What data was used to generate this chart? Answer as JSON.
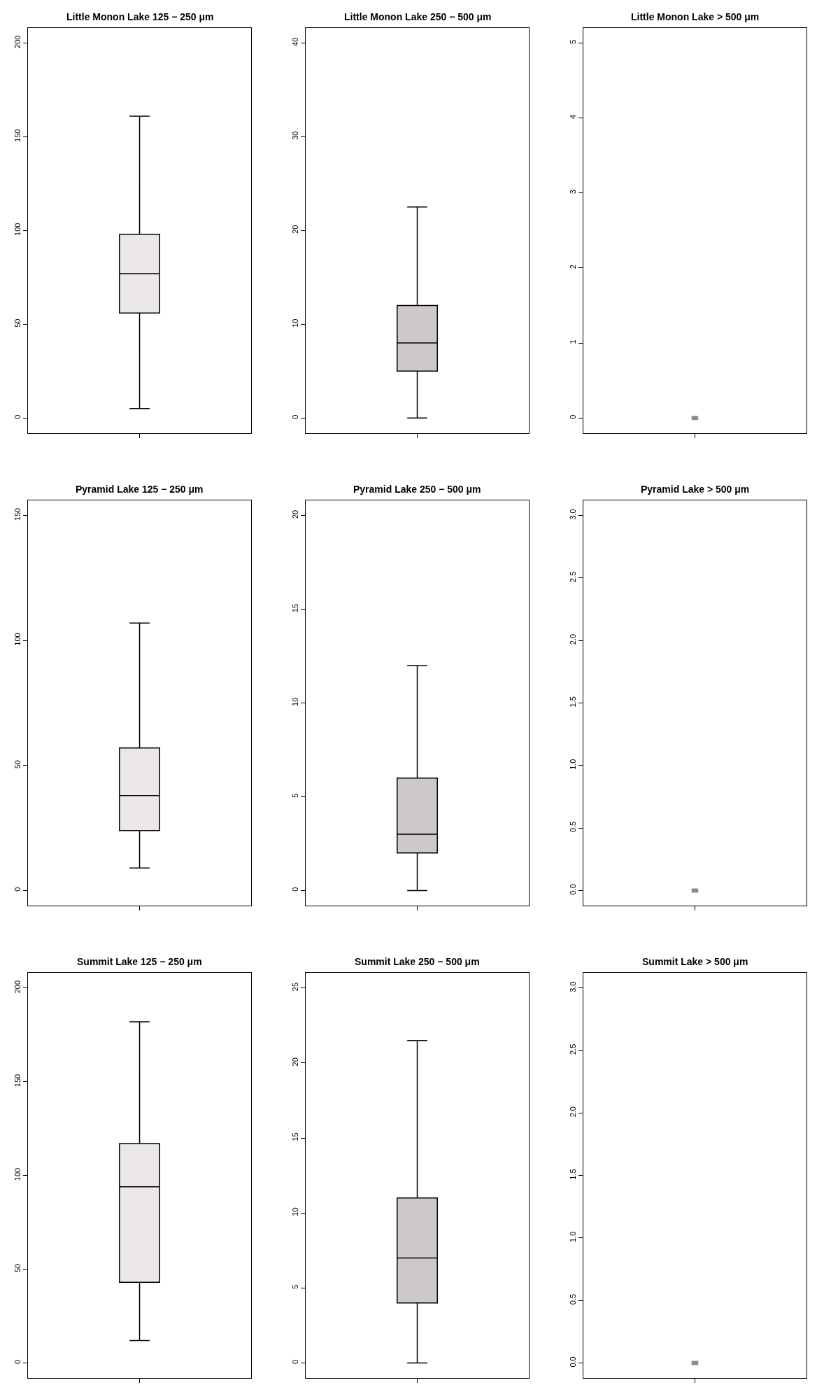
{
  "chart_data": [
    {
      "type": "box",
      "title": "Little Monon Lake 125 − 250 μm",
      "categories": [
        null
      ],
      "ylim": [
        -8,
        208
      ],
      "yticks": [
        0,
        50,
        100,
        150,
        200
      ],
      "series": [
        {
          "color": "#ece8e7",
          "boxes": [
            {
              "low": 5,
              "q1": 56,
              "median": 77,
              "q3": 98,
              "high": 161
            }
          ]
        }
      ]
    },
    {
      "type": "box",
      "title": "Little Monon Lake 250 − 500 μm",
      "categories": [
        null
      ],
      "ylim": [
        -1.6,
        41.6
      ],
      "yticks": [
        0,
        10,
        20,
        30,
        40
      ],
      "series": [
        {
          "color": "#cdc9c8",
          "boxes": [
            {
              "low": 0,
              "q1": 5,
              "median": 8,
              "q3": 12,
              "high": 22.5
            }
          ]
        }
      ]
    },
    {
      "type": "box",
      "title": "Little Monon Lake > 500 μm",
      "categories": [
        null
      ],
      "ylim": [
        -0.2,
        5.2
      ],
      "yticks": [
        0,
        1,
        2,
        3,
        4,
        5
      ],
      "series": [
        {
          "color": "#8b8b8b",
          "boxes": [
            {
              "low": 0,
              "q1": 0,
              "median": 0,
              "q3": 0,
              "high": 0
            }
          ]
        }
      ]
    },
    {
      "type": "box",
      "title": "Pyramid Lake 125 − 250 μm",
      "categories": [
        null
      ],
      "ylim": [
        -6,
        156
      ],
      "yticks": [
        0,
        50,
        100,
        150
      ],
      "series": [
        {
          "color": "#ece8e7",
          "boxes": [
            {
              "low": 9,
              "q1": 24,
              "median": 38,
              "q3": 57,
              "high": 107
            }
          ]
        }
      ]
    },
    {
      "type": "box",
      "title": "Pyramid Lake 250 − 500 μm",
      "categories": [
        null
      ],
      "ylim": [
        -0.8,
        20.8
      ],
      "yticks": [
        0,
        5,
        10,
        15,
        20
      ],
      "series": [
        {
          "color": "#cdc9c8",
          "boxes": [
            {
              "low": 0,
              "q1": 2,
              "median": 3,
              "q3": 6,
              "high": 12
            }
          ]
        }
      ]
    },
    {
      "type": "box",
      "title": "Pyramid Lake > 500 μm",
      "categories": [
        null
      ],
      "ylim": [
        -0.12,
        3.12
      ],
      "yticks": [
        {
          "value": 0,
          "label": "0.0"
        },
        {
          "value": 0.5,
          "label": "0.5"
        },
        {
          "value": 1,
          "label": "1.0"
        },
        {
          "value": 1.5,
          "label": "1.5"
        },
        {
          "value": 2,
          "label": "2.0"
        },
        {
          "value": 2.5,
          "label": "2.5"
        },
        {
          "value": 3,
          "label": "3.0"
        }
      ],
      "series": [
        {
          "color": "#8b8b8b",
          "boxes": [
            {
              "low": 0,
              "q1": 0,
              "median": 0,
              "q3": 0,
              "high": 0
            }
          ]
        }
      ]
    },
    {
      "type": "box",
      "title": "Summit Lake 125 − 250 μm",
      "categories": [
        null
      ],
      "ylim": [
        -8,
        208
      ],
      "yticks": [
        0,
        50,
        100,
        150,
        200
      ],
      "series": [
        {
          "color": "#ece8e7",
          "boxes": [
            {
              "low": 12,
              "q1": 43,
              "median": 94,
              "q3": 117,
              "high": 182
            }
          ]
        }
      ]
    },
    {
      "type": "box",
      "title": "Summit Lake 250 − 500 μm",
      "categories": [
        null
      ],
      "ylim": [
        -1,
        26
      ],
      "yticks": [
        0,
        5,
        10,
        15,
        20,
        25
      ],
      "series": [
        {
          "color": "#cdc9c8",
          "boxes": [
            {
              "low": 0,
              "q1": 4,
              "median": 7,
              "q3": 11,
              "high": 21.5
            }
          ]
        }
      ]
    },
    {
      "type": "box",
      "title": "Summit Lake > 500 μm",
      "categories": [
        null
      ],
      "ylim": [
        -0.12,
        3.12
      ],
      "yticks": [
        {
          "value": 0,
          "label": "0.0"
        },
        {
          "value": 0.5,
          "label": "0.5"
        },
        {
          "value": 1,
          "label": "1.0"
        },
        {
          "value": 1.5,
          "label": "1.5"
        },
        {
          "value": 2,
          "label": "2.0"
        },
        {
          "value": 2.5,
          "label": "2.5"
        },
        {
          "value": 3,
          "label": "3.0"
        }
      ],
      "series": [
        {
          "color": "#8b8b8b",
          "boxes": [
            {
              "low": 0,
              "q1": 0,
              "median": 0,
              "q3": 0,
              "high": 0
            }
          ]
        }
      ]
    }
  ]
}
